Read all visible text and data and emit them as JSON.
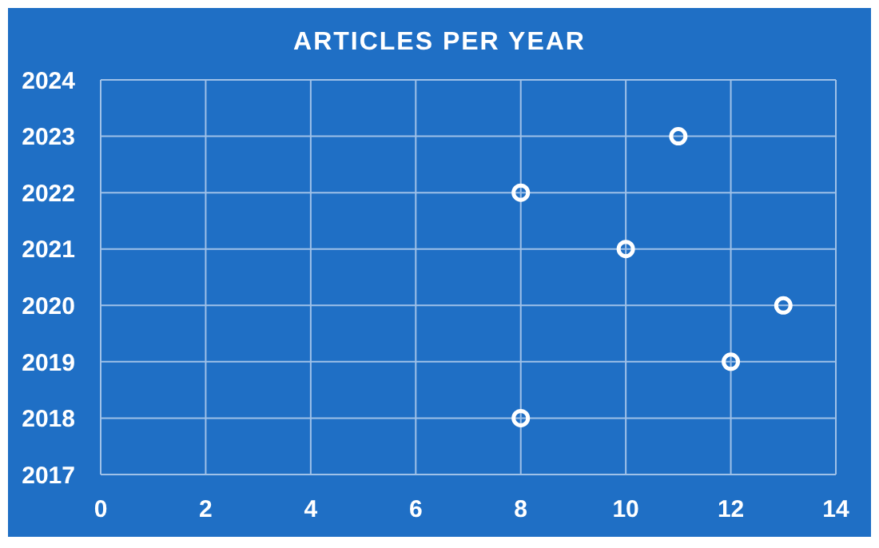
{
  "chart_data": {
    "type": "scatter",
    "title": "ARTICLES PER YEAR",
    "x": [
      8,
      12,
      13,
      10,
      8,
      11
    ],
    "values": [
      2018,
      2019,
      2020,
      2021,
      2022,
      2023
    ],
    "color": "#ffffff",
    "xlim": [
      0,
      14
    ],
    "xticks": [
      0,
      2,
      4,
      6,
      8,
      10,
      12,
      14
    ],
    "ylim": [
      2017,
      2024
    ],
    "yticks": [
      2017,
      2018,
      2019,
      2020,
      2021,
      2022,
      2023,
      2024
    ],
    "grid": true,
    "marker": "circle"
  }
}
